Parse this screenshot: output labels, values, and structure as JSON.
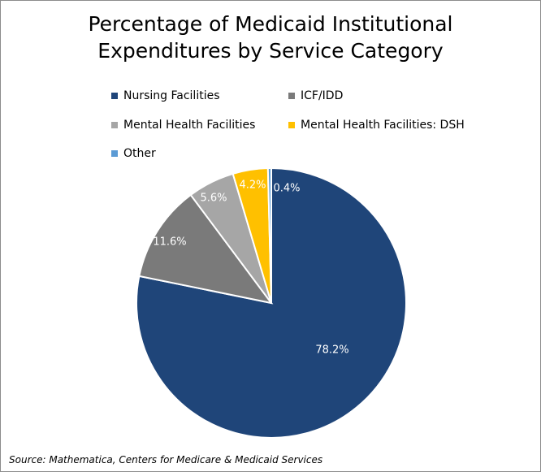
{
  "chart_data": {
    "type": "pie",
    "title": "Percentage of Medicaid Institutional Expenditures by Service Category",
    "title_lines": [
      "Percentage of Medicaid Institutional",
      "Expenditures by Service Category"
    ],
    "slices": [
      {
        "label": "Nursing Facilities",
        "value": 78.2,
        "value_label": "78.2%",
        "color": "#1f4579"
      },
      {
        "label": "ICF/IDD",
        "value": 11.6,
        "value_label": "11.6%",
        "color": "#7a7a7a"
      },
      {
        "label": "Mental Health Facilities",
        "value": 5.6,
        "value_label": "5.6%",
        "color": "#a6a6a6"
      },
      {
        "label": "Mental Health Facilities: DSH",
        "value": 4.2,
        "value_label": "4.2%",
        "color": "#ffc000"
      },
      {
        "label": "Other",
        "value": 0.4,
        "value_label": "0.4%",
        "color": "#5b9bd5"
      }
    ],
    "legend_position": "top",
    "start_angle": "12 o'clock",
    "direction": "clockwise"
  },
  "source": "Source: Mathematica, Centers for Medicare & Medicaid Services"
}
